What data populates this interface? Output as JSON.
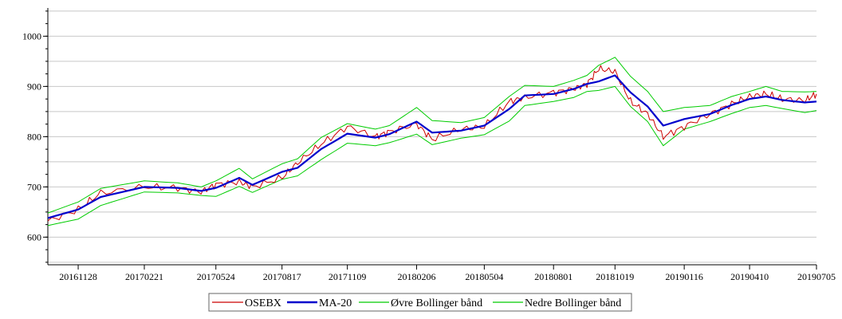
{
  "chart_data": {
    "type": "line",
    "title": "",
    "xlabel": "",
    "ylabel": "",
    "ylim": [
      545,
      1053
    ],
    "xlim": [
      "2016-10-20",
      "2019-07-05"
    ],
    "grid": "horizontal",
    "legend_position": "bottom-center",
    "y_ticks": [
      600,
      700,
      800,
      900,
      1000
    ],
    "x_tick_labels": [
      {
        "date": "2016-11-28",
        "label": "20161128"
      },
      {
        "date": "2017-02-21",
        "label": "20170221"
      },
      {
        "date": "2017-05-24",
        "label": "20170524"
      },
      {
        "date": "2017-08-17",
        "label": "20170817"
      },
      {
        "date": "2017-11-09",
        "label": "20171109"
      },
      {
        "date": "2018-02-06",
        "label": "20180206"
      },
      {
        "date": "2018-05-04",
        "label": "20180504"
      },
      {
        "date": "2018-08-01",
        "label": "20180801"
      },
      {
        "date": "2018-10-19",
        "label": "20181019"
      },
      {
        "date": "2019-01-16",
        "label": "20190116"
      },
      {
        "date": "2019-04-10",
        "label": "20190410"
      },
      {
        "date": "2019-07-05",
        "label": "20190705"
      }
    ],
    "series": [
      {
        "name": "OSEBX",
        "color": "#cc0000"
      },
      {
        "name": "MA-20",
        "color": "#0000cc"
      },
      {
        "name": "Øvre Bollinger bånd",
        "color": "#00cc00"
      },
      {
        "name": "Nedre Bollinger bånd",
        "color": "#00cc00"
      }
    ],
    "x": [
      "2016-10-20",
      "2016-11-28",
      "2016-12-27",
      "2017-02-21",
      "2017-04-05",
      "2017-05-05",
      "2017-05-24",
      "2017-06-23",
      "2017-07-10",
      "2017-08-17",
      "2017-09-06",
      "2017-10-06",
      "2017-11-09",
      "2017-12-15",
      "2018-01-02",
      "2018-02-06",
      "2018-02-26",
      "2018-04-04",
      "2018-05-04",
      "2018-06-05",
      "2018-06-25",
      "2018-08-01",
      "2018-08-27",
      "2018-09-13",
      "2018-09-28",
      "2018-10-19",
      "2018-11-08",
      "2018-11-30",
      "2018-12-20",
      "2019-01-16",
      "2019-02-18",
      "2019-03-18",
      "2019-04-10",
      "2019-05-01",
      "2019-05-22",
      "2019-06-20",
      "2019-07-05"
    ],
    "osebx": [
      632,
      655,
      688,
      700,
      698,
      690,
      705,
      710,
      700,
      718,
      748,
      785,
      820,
      800,
      810,
      825,
      795,
      815,
      820,
      870,
      878,
      888,
      895,
      905,
      935,
      930,
      870,
      845,
      800,
      820,
      845,
      865,
      880,
      885,
      875,
      872,
      885
    ],
    "ma20": [
      638,
      655,
      680,
      700,
      698,
      692,
      698,
      718,
      704,
      730,
      738,
      775,
      806,
      798,
      805,
      830,
      808,
      812,
      822,
      855,
      882,
      885,
      895,
      905,
      910,
      922,
      888,
      860,
      822,
      835,
      845,
      863,
      875,
      880,
      873,
      868,
      870
    ],
    "upper": [
      648,
      670,
      697,
      712,
      708,
      700,
      712,
      737,
      716,
      746,
      756,
      798,
      826,
      815,
      822,
      858,
      832,
      828,
      838,
      880,
      902,
      900,
      912,
      922,
      942,
      958,
      920,
      890,
      850,
      858,
      862,
      880,
      890,
      900,
      890,
      889,
      890
    ],
    "lower": [
      623,
      636,
      663,
      690,
      688,
      683,
      681,
      701,
      689,
      715,
      722,
      754,
      787,
      782,
      788,
      805,
      784,
      797,
      804,
      831,
      862,
      870,
      878,
      890,
      892,
      900,
      860,
      830,
      782,
      815,
      830,
      846,
      858,
      862,
      856,
      848,
      852
    ]
  },
  "legend": {
    "items": [
      {
        "label": "OSEBX",
        "color": "#cc0000"
      },
      {
        "label": "MA-20",
        "color": "#0000cc"
      },
      {
        "label": "Øvre Bollinger bånd",
        "color": "#00cc00"
      },
      {
        "label": "Nedre Bollinger bånd",
        "color": "#00cc00"
      }
    ]
  }
}
